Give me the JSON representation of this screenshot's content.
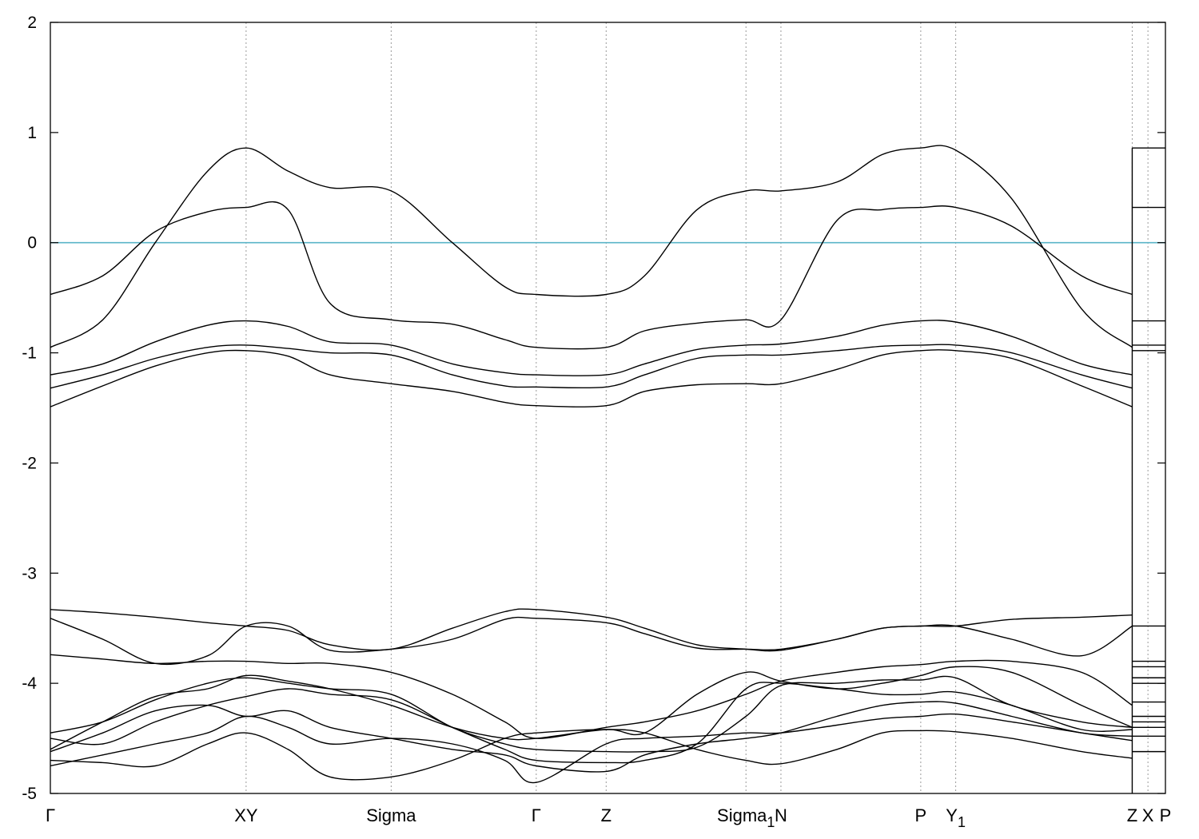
{
  "chart_data": {
    "type": "line",
    "title": "",
    "xlabel": "",
    "ylabel": "",
    "ylim": [
      -5,
      2
    ],
    "xlim": [
      0,
      31.9
    ],
    "y_ticks": [
      -5,
      -4,
      -3,
      -2,
      -1,
      0,
      1,
      2
    ],
    "x_ticks": [
      {
        "x": 0.0,
        "label": "Γ"
      },
      {
        "x": 5.6,
        "label": "XY"
      },
      {
        "x": 9.75,
        "label": "Sigma"
      },
      {
        "x": 13.9,
        "label": "Γ"
      },
      {
        "x": 15.9,
        "label": "Z"
      },
      {
        "x": 19.9,
        "label": "Sigma",
        "sub": "1"
      },
      {
        "x": 20.9,
        "label": "N"
      },
      {
        "x": 24.9,
        "label": "P"
      },
      {
        "x": 25.9,
        "label": "Y",
        "sub": "1"
      },
      {
        "x": 30.95,
        "label": "Z"
      },
      {
        "x": 31.4,
        "label": "X"
      },
      {
        "x": 31.9,
        "label": "P"
      }
    ],
    "grid": "vertical dotted lines at high-symmetry points",
    "reference_line": {
      "y": 0,
      "color": "#5ab4c8"
    },
    "line_color": "#000000",
    "segment_end_x": 30.95,
    "series": [
      {
        "x": [
          0,
          1.5,
          3,
          4.5,
          5.6,
          6.8,
          8,
          9.75,
          11.5,
          13,
          13.9,
          15.9,
          17,
          18.5,
          19.9,
          20.9,
          22.5,
          23.8,
          24.9,
          25.9,
          27.5,
          29.5,
          30.95
        ],
        "y": [
          -0.47,
          -0.3,
          0.1,
          0.28,
          0.32,
          0.3,
          -0.55,
          -0.7,
          -0.74,
          -0.88,
          -0.95,
          -0.95,
          -0.8,
          -0.73,
          -0.7,
          -0.7,
          0.2,
          0.3,
          0.32,
          0.32,
          0.15,
          -0.3,
          -0.47
        ]
      },
      {
        "x": [
          0,
          1.5,
          3,
          4.5,
          5.6,
          6.8,
          8,
          9.75,
          11.5,
          13,
          13.9,
          15.9,
          17,
          18.5,
          19.9,
          20.9,
          22.5,
          23.8,
          24.9,
          25.9,
          27.5,
          29.5,
          30.95
        ],
        "y": [
          -0.95,
          -0.7,
          0.0,
          0.65,
          0.86,
          0.65,
          0.5,
          0.47,
          0.0,
          -0.4,
          -0.47,
          -0.47,
          -0.3,
          0.3,
          0.47,
          0.47,
          0.55,
          0.8,
          0.86,
          0.84,
          0.4,
          -0.6,
          -0.95
        ]
      },
      {
        "x": [
          0,
          1.5,
          3,
          4.5,
          5.6,
          6.8,
          8,
          9.75,
          11.5,
          13,
          13.9,
          15.9,
          17,
          18.5,
          19.9,
          20.9,
          22.5,
          23.8,
          24.9,
          25.9,
          27.5,
          29.5,
          30.95
        ],
        "y": [
          -1.2,
          -1.1,
          -0.9,
          -0.75,
          -0.71,
          -0.76,
          -0.9,
          -0.93,
          -1.1,
          -1.18,
          -1.2,
          -1.2,
          -1.1,
          -0.97,
          -0.93,
          -0.92,
          -0.85,
          -0.75,
          -0.71,
          -0.72,
          -0.85,
          -1.1,
          -1.2
        ]
      },
      {
        "x": [
          0,
          1.5,
          3,
          4.5,
          5.6,
          6.8,
          8,
          9.75,
          11.5,
          13,
          13.9,
          15.9,
          17,
          18.5,
          19.9,
          20.9,
          22.5,
          23.8,
          24.9,
          25.9,
          27.5,
          29.5,
          30.95
        ],
        "y": [
          -1.32,
          -1.2,
          -1.05,
          -0.95,
          -0.93,
          -0.96,
          -1.0,
          -1.02,
          -1.2,
          -1.3,
          -1.31,
          -1.31,
          -1.2,
          -1.05,
          -1.02,
          -1.02,
          -0.98,
          -0.94,
          -0.93,
          -0.93,
          -1.0,
          -1.2,
          -1.32
        ]
      },
      {
        "x": [
          0,
          1.5,
          3,
          4.5,
          5.6,
          6.8,
          8,
          9.75,
          11.5,
          13,
          13.9,
          15.9,
          17,
          18.5,
          19.9,
          20.9,
          22.5,
          23.8,
          24.9,
          25.9,
          27.5,
          29.5,
          30.95
        ],
        "y": [
          -1.49,
          -1.3,
          -1.12,
          -1.0,
          -0.98,
          -1.03,
          -1.2,
          -1.28,
          -1.35,
          -1.45,
          -1.48,
          -1.48,
          -1.35,
          -1.29,
          -1.28,
          -1.28,
          -1.15,
          -1.02,
          -0.98,
          -0.98,
          -1.05,
          -1.3,
          -1.49
        ]
      },
      {
        "x": [
          0,
          1.5,
          3,
          4.5,
          5.6,
          6.8,
          8,
          9.75,
          11.5,
          13,
          13.9,
          15.9,
          17,
          18.5,
          19.9,
          20.9,
          22.5,
          23.8,
          24.9,
          25.9,
          27.5,
          29.5,
          30.95
        ],
        "y": [
          -3.33,
          -3.36,
          -3.4,
          -3.45,
          -3.48,
          -3.52,
          -3.65,
          -3.69,
          -3.5,
          -3.35,
          -3.33,
          -3.4,
          -3.5,
          -3.65,
          -3.69,
          -3.7,
          -3.6,
          -3.5,
          -3.48,
          -3.48,
          -3.42,
          -3.4,
          -3.38
        ]
      },
      {
        "x": [
          0,
          1.5,
          3,
          4.5,
          5.6,
          6.8,
          8,
          9.75,
          11.5,
          13,
          13.9,
          15.9,
          17,
          18.5,
          19.9,
          20.9,
          22.5,
          23.8,
          24.9,
          25.9,
          27.5,
          29.5,
          30.95
        ],
        "y": [
          -3.41,
          -3.6,
          -3.82,
          -3.75,
          -3.48,
          -3.48,
          -3.7,
          -3.69,
          -3.6,
          -3.42,
          -3.41,
          -3.45,
          -3.55,
          -3.68,
          -3.69,
          -3.69,
          -3.6,
          -3.5,
          -3.48,
          -3.48,
          -3.6,
          -3.75,
          -3.48
        ]
      },
      {
        "x": [
          0,
          1.5,
          3,
          4.5,
          5.6,
          6.8,
          8,
          9.75,
          11.5,
          13,
          13.9,
          15.9,
          17,
          18.5,
          19.9,
          20.9,
          22.5,
          23.8,
          24.9,
          25.9,
          27.5,
          29.5,
          30.95
        ],
        "y": [
          -3.74,
          -3.78,
          -3.82,
          -3.8,
          -3.8,
          -3.82,
          -3.82,
          -3.9,
          -4.1,
          -4.35,
          -4.5,
          -4.4,
          -4.35,
          -4.25,
          -4.1,
          -3.98,
          -3.9,
          -3.85,
          -3.83,
          -3.8,
          -3.8,
          -3.9,
          -4.2
        ]
      },
      {
        "x": [
          0,
          1.5,
          3,
          4.5,
          5.6,
          6.8,
          8,
          9.75,
          11.5,
          13,
          13.9,
          15.9,
          17,
          18.5,
          19.9,
          20.9,
          22.5,
          23.8,
          24.9,
          25.9,
          27.5,
          29.5,
          30.95
        ],
        "y": [
          -4.6,
          -4.35,
          -4.12,
          -4.05,
          -3.93,
          -3.98,
          -4.05,
          -4.2,
          -4.4,
          -4.5,
          -4.5,
          -4.42,
          -4.45,
          -4.1,
          -3.9,
          -3.98,
          -4.05,
          -4.0,
          -3.93,
          -3.85,
          -3.9,
          -4.2,
          -4.4
        ]
      },
      {
        "x": [
          0,
          1.5,
          3,
          4.5,
          5.6,
          6.8,
          8,
          9.75,
          11.5,
          13,
          13.9,
          15.9,
          17,
          18.5,
          19.9,
          20.9,
          22.5,
          23.8,
          24.9,
          25.9,
          27.5,
          29.5,
          30.95
        ],
        "y": [
          -4.45,
          -4.35,
          -4.15,
          -4.0,
          -3.95,
          -4.0,
          -4.05,
          -4.1,
          -4.4,
          -4.55,
          -4.6,
          -4.62,
          -4.62,
          -4.58,
          -4.3,
          -4.02,
          -4.0,
          -3.97,
          -3.97,
          -3.95,
          -4.2,
          -4.35,
          -4.4
        ]
      },
      {
        "x": [
          0,
          1.5,
          3,
          4.5,
          5.6,
          6.8,
          8,
          9.75,
          11.5,
          13,
          13.9,
          15.9,
          17,
          18.5,
          19.9,
          20.9,
          22.5,
          23.8,
          24.9,
          25.9,
          27.5,
          29.5,
          30.95
        ],
        "y": [
          -4.5,
          -4.55,
          -4.35,
          -4.2,
          -4.12,
          -4.05,
          -4.1,
          -4.15,
          -4.4,
          -4.6,
          -4.7,
          -4.72,
          -4.7,
          -4.55,
          -4.05,
          -4.0,
          -4.05,
          -4.1,
          -4.1,
          -4.08,
          -4.2,
          -4.42,
          -4.42
        ]
      },
      {
        "x": [
          0,
          1.5,
          3,
          4.5,
          5.6,
          6.8,
          8,
          9.75,
          11.5,
          13,
          13.9,
          15.9,
          17,
          18.5,
          19.9,
          20.9,
          22.5,
          23.8,
          24.9,
          25.9,
          27.5,
          29.5,
          30.95
        ],
        "y": [
          -4.62,
          -4.45,
          -4.25,
          -4.2,
          -4.3,
          -4.25,
          -4.4,
          -4.5,
          -4.6,
          -4.65,
          -4.75,
          -4.8,
          -4.65,
          -4.55,
          -4.5,
          -4.45,
          -4.3,
          -4.2,
          -4.17,
          -4.18,
          -4.3,
          -4.45,
          -4.48
        ]
      },
      {
        "x": [
          0,
          1.5,
          3,
          4.5,
          5.6,
          6.8,
          8,
          9.75,
          11.5,
          13,
          13.9,
          15.9,
          17,
          18.5,
          19.9,
          20.9,
          22.5,
          23.8,
          24.9,
          25.9,
          27.5,
          29.5,
          30.95
        ],
        "y": [
          -4.75,
          -4.65,
          -4.55,
          -4.45,
          -4.3,
          -4.4,
          -4.55,
          -4.5,
          -4.55,
          -4.7,
          -4.9,
          -4.55,
          -4.5,
          -4.48,
          -4.45,
          -4.45,
          -4.38,
          -4.32,
          -4.3,
          -4.28,
          -4.35,
          -4.45,
          -4.52
        ]
      },
      {
        "x": [
          0,
          1.5,
          3,
          4.5,
          5.6,
          6.8,
          8,
          9.75,
          11.5,
          13,
          13.9,
          15.9,
          17,
          18.5,
          19.9,
          20.9,
          22.5,
          23.8,
          24.9,
          25.9,
          27.5,
          29.5,
          30.95
        ],
        "y": [
          -4.7,
          -4.72,
          -4.75,
          -4.55,
          -4.45,
          -4.6,
          -4.85,
          -4.85,
          -4.7,
          -4.5,
          -4.45,
          -4.42,
          -4.45,
          -4.6,
          -4.7,
          -4.73,
          -4.6,
          -4.45,
          -4.43,
          -4.44,
          -4.5,
          -4.62,
          -4.68
        ]
      }
    ],
    "right_panel_levels": [
      0.86,
      0.32,
      -0.71,
      -0.93,
      -0.98,
      -3.48,
      -3.8,
      -3.85,
      -3.95,
      -4.0,
      -4.17,
      -4.3,
      -4.35,
      -4.4,
      -4.48,
      -4.62
    ]
  }
}
